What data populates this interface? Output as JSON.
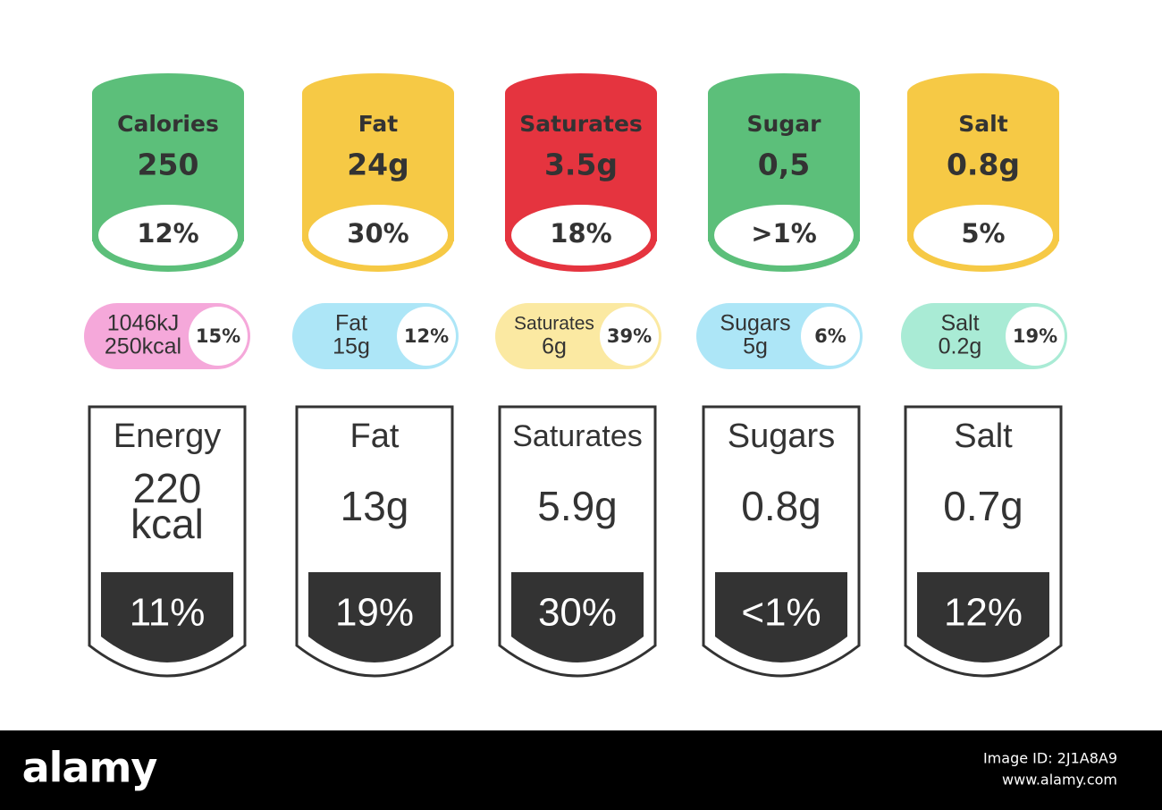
{
  "cylinders": [
    {
      "name": "Calories",
      "value": "250",
      "percent": "12%",
      "color": "#5cbf7a"
    },
    {
      "name": "Fat",
      "value": "24g",
      "percent": "30%",
      "color": "#f6c945"
    },
    {
      "name": "Saturates",
      "value": "3.5g",
      "percent": "18%",
      "color": "#e5343f"
    },
    {
      "name": "Sugar",
      "value": "0,5",
      "percent": ">1%",
      "color": "#5cbf7a"
    },
    {
      "name": "Salt",
      "value": "0.8g",
      "percent": "5%",
      "color": "#f6c945"
    }
  ],
  "pills": [
    {
      "lines": [
        "1046kJ",
        "250kcal"
      ],
      "percent": "15%",
      "color": "#f5a8da"
    },
    {
      "lines": [
        "Fat",
        "15g"
      ],
      "percent": "12%",
      "color": "#ade6f7"
    },
    {
      "lines": [
        "Saturates",
        "6g"
      ],
      "percent": "39%",
      "color": "#fbe9a2"
    },
    {
      "lines": [
        "Sugars",
        "5g"
      ],
      "percent": "6%",
      "color": "#ade6f7"
    },
    {
      "lines": [
        "Salt",
        "0.2g"
      ],
      "percent": "19%",
      "color": "#a9ebd5"
    }
  ],
  "labels": [
    {
      "name": "Energy",
      "value": [
        "220",
        "kcal"
      ],
      "percent": "11%"
    },
    {
      "name": "Fat",
      "value": [
        "13g"
      ],
      "percent": "19%"
    },
    {
      "name": "Saturates",
      "value": [
        "5.9g"
      ],
      "percent": "30%"
    },
    {
      "name": "Sugars",
      "value": [
        "0.8g"
      ],
      "percent": "<1%"
    },
    {
      "name": "Salt",
      "value": [
        "0.7g"
      ],
      "percent": "12%"
    }
  ],
  "footer": {
    "logo": "alamy",
    "image_id": "Image ID: 2J1A8A9",
    "url": "www.alamy.com"
  }
}
